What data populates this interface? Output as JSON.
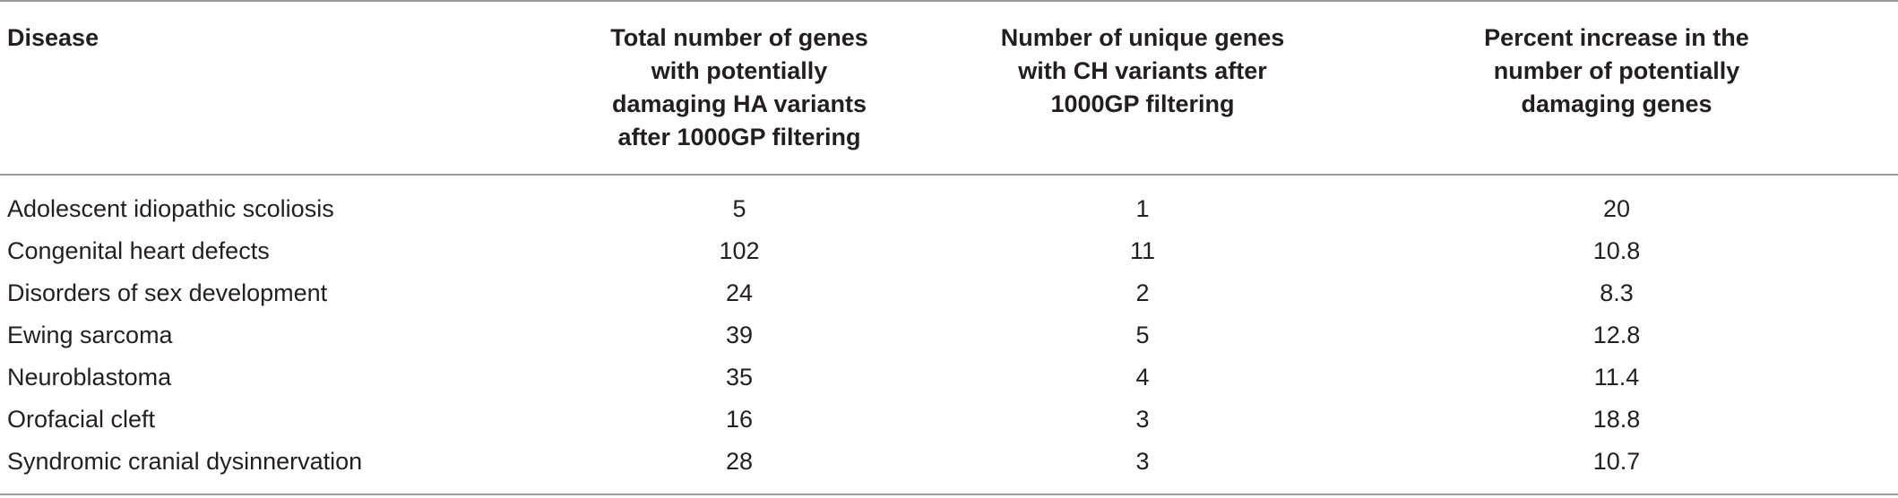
{
  "table": {
    "headers": {
      "disease": "Disease",
      "total_genes": [
        "Total number of genes",
        "with potentially",
        "damaging HA variants",
        "after 1000GP filtering"
      ],
      "unique_genes": [
        "Number of unique genes",
        "with CH variants after",
        "1000GP filtering"
      ],
      "percent_increase": [
        "Percent increase in the",
        "number of potentially",
        "damaging genes"
      ]
    },
    "rows": [
      {
        "disease": "Adolescent idiopathic scoliosis",
        "total": "5",
        "unique": "1",
        "percent": "20"
      },
      {
        "disease": "Congenital heart defects",
        "total": "102",
        "unique": "11",
        "percent": "10.8"
      },
      {
        "disease": "Disorders of sex development",
        "total": "24",
        "unique": "2",
        "percent": "8.3"
      },
      {
        "disease": "Ewing sarcoma",
        "total": "39",
        "unique": "5",
        "percent": "12.8"
      },
      {
        "disease": "Neuroblastoma",
        "total": "35",
        "unique": "4",
        "percent": "11.4"
      },
      {
        "disease": "Orofacial cleft",
        "total": "16",
        "unique": "3",
        "percent": "18.8"
      },
      {
        "disease": "Syndromic cranial dysinnervation",
        "total": "28",
        "unique": "3",
        "percent": "10.7"
      }
    ]
  }
}
